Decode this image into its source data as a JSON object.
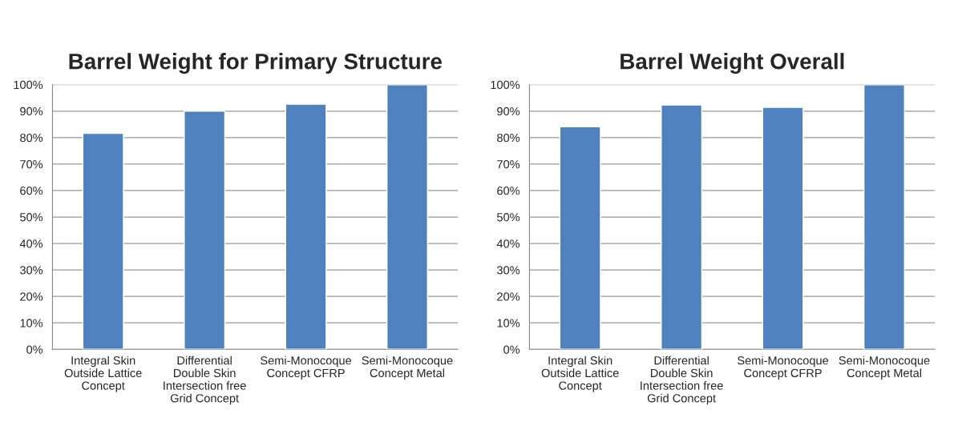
{
  "chart_data": [
    {
      "type": "bar",
      "title": "Barrel Weight for Primary Structure",
      "categories": [
        "Integral Skin\nOutside Lattice\nConcept",
        "Differential\nDouble Skin\nIntersection free\nGrid Concept",
        "Semi-Monocoque\nConcept CFRP",
        "Semi-Monocoque\nConcept Metal"
      ],
      "values": [
        81.6,
        90,
        92.6,
        100
      ],
      "color": "#4f81bd",
      "ylim": [
        0,
        100
      ],
      "yticks": [
        {
          "value": 0,
          "label": "0%"
        },
        {
          "value": 10,
          "label": "10%"
        },
        {
          "value": 20,
          "label": "20%"
        },
        {
          "value": 30,
          "label": "30%"
        },
        {
          "value": 40,
          "label": "40%"
        },
        {
          "value": 50,
          "label": "50%"
        },
        {
          "value": 60,
          "label": "60%"
        },
        {
          "value": 70,
          "label": "70%"
        },
        {
          "value": 80,
          "label": "80%"
        },
        {
          "value": 90,
          "label": "90%"
        },
        {
          "value": 100,
          "label": "100%"
        }
      ],
      "grid": "y",
      "legend": false
    },
    {
      "type": "bar",
      "title": "Barrel Weight Overall",
      "categories": [
        "Integral Skin\nOutside Lattice\nConcept",
        "Differential\nDouble Skin\nIntersection free\nGrid Concept",
        "Semi-Monocoque\nConcept CFRP",
        "Semi-Monocoque\nConcept Metal"
      ],
      "values": [
        84.1,
        92.3,
        91.4,
        100
      ],
      "color": "#4f81bd",
      "ylim": [
        0,
        100
      ],
      "yticks": [
        {
          "value": 0,
          "label": "0%"
        },
        {
          "value": 10,
          "label": "10%"
        },
        {
          "value": 20,
          "label": "20%"
        },
        {
          "value": 30,
          "label": "30%"
        },
        {
          "value": 40,
          "label": "40%"
        },
        {
          "value": 50,
          "label": "50%"
        },
        {
          "value": 60,
          "label": "60%"
        },
        {
          "value": 70,
          "label": "70%"
        },
        {
          "value": 80,
          "label": "80%"
        },
        {
          "value": 90,
          "label": "90%"
        },
        {
          "value": 100,
          "label": "100%"
        }
      ],
      "grid": "y",
      "legend": false
    }
  ]
}
